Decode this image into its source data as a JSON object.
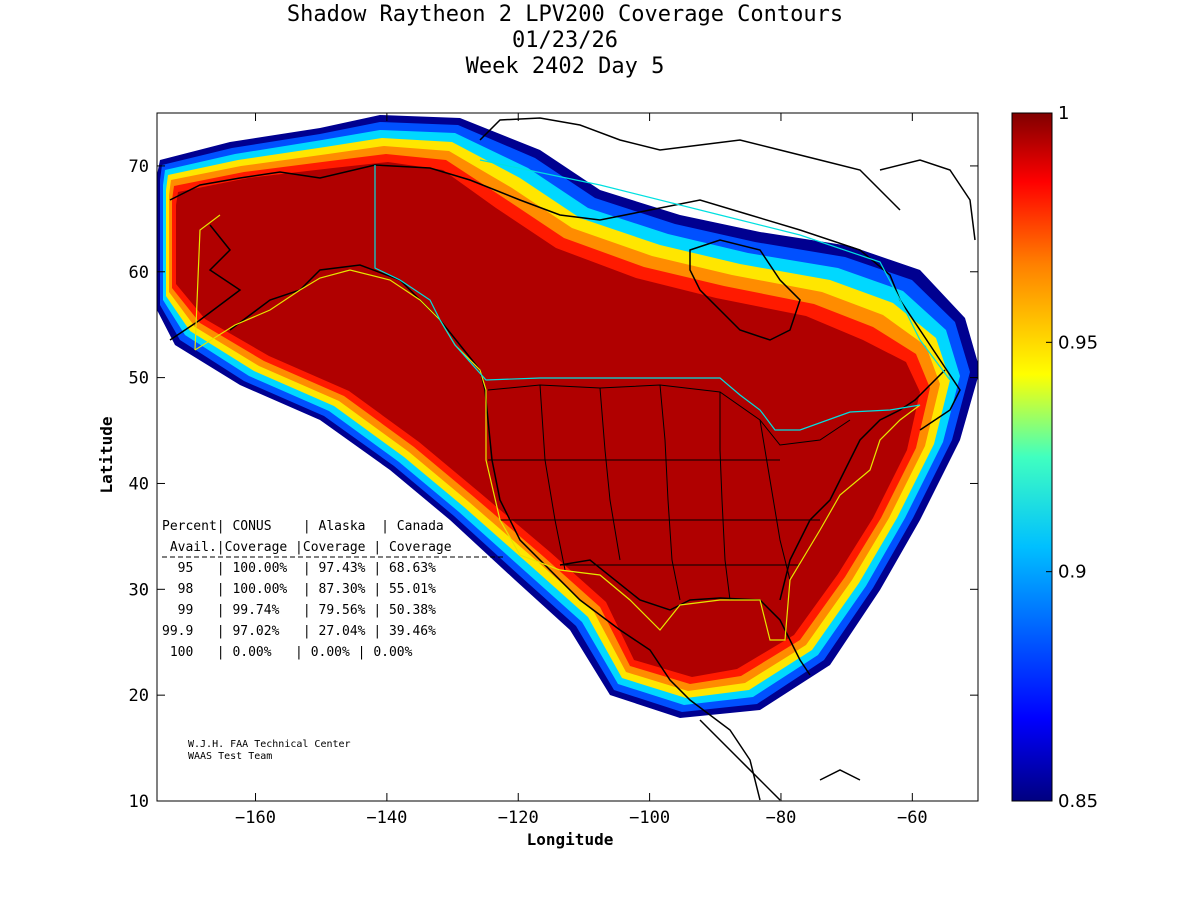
{
  "title": {
    "line1": "Shadow Raytheon 2 LPV200 Coverage Contours",
    "line2": "01/23/26",
    "line3": "Week 2402 Day 5"
  },
  "axes": {
    "xlabel": "Longitude",
    "ylabel": "Latitude",
    "xlim": [
      -175,
      -50
    ],
    "ylim": [
      10,
      75
    ],
    "xticks": [
      -160,
      -140,
      -120,
      -100,
      -80,
      -60
    ],
    "yticks": [
      10,
      20,
      30,
      40,
      50,
      60,
      70
    ]
  },
  "colorbar": {
    "min": 0.85,
    "max": 1,
    "ticks": [
      "1",
      "0.95",
      "0.9",
      "0.85"
    ],
    "tick_values": [
      1,
      0.95,
      0.9,
      0.85
    ]
  },
  "table": {
    "header1": "Percent| CONUS    | Alaska  | Canada",
    "header2": " Avail.|Coverage |Coverage | Coverage",
    "rows": [
      "  95   | 100.00%  | 97.43% | 68.63%",
      "  98   | 100.00%  | 87.30% | 55.01%",
      "  99   | 99.74%   | 79.56% | 50.38%",
      "99.9   | 97.02%   | 27.04% | 39.46%",
      " 100   | 0.00%   | 0.00% | 0.00%"
    ]
  },
  "credit": {
    "line1": "W.J.H. FAA Technical Center",
    "line2": "WAAS Test Team"
  },
  "colors": {
    "full": "#b00000",
    "red": "#ff1a00",
    "orange": "#ff8c00",
    "yellow": "#ffe600",
    "cyan": "#00d8ff",
    "blue": "#0050ff",
    "navy": "#000090"
  },
  "chart_data": {
    "type": "heatmap",
    "title": "Shadow Raytheon 2 LPV200 Coverage Contours",
    "xlabel": "Longitude",
    "ylabel": "Latitude",
    "xlim": [
      -175,
      -50
    ],
    "ylim": [
      10,
      75
    ],
    "value_range": [
      0.85,
      1
    ],
    "coverage_percent": {
      "columns": [
        "CONUS",
        "Alaska",
        "Canada"
      ],
      "availability": [
        "95",
        "98",
        "99",
        "99.9",
        "100"
      ],
      "values": [
        [
          100.0,
          97.43,
          68.63
        ],
        [
          100.0,
          87.3,
          55.01
        ],
        [
          99.74,
          79.56,
          50.38
        ],
        [
          97.02,
          27.04,
          39.46
        ],
        [
          0.0,
          0.0,
          0.0
        ]
      ]
    }
  }
}
